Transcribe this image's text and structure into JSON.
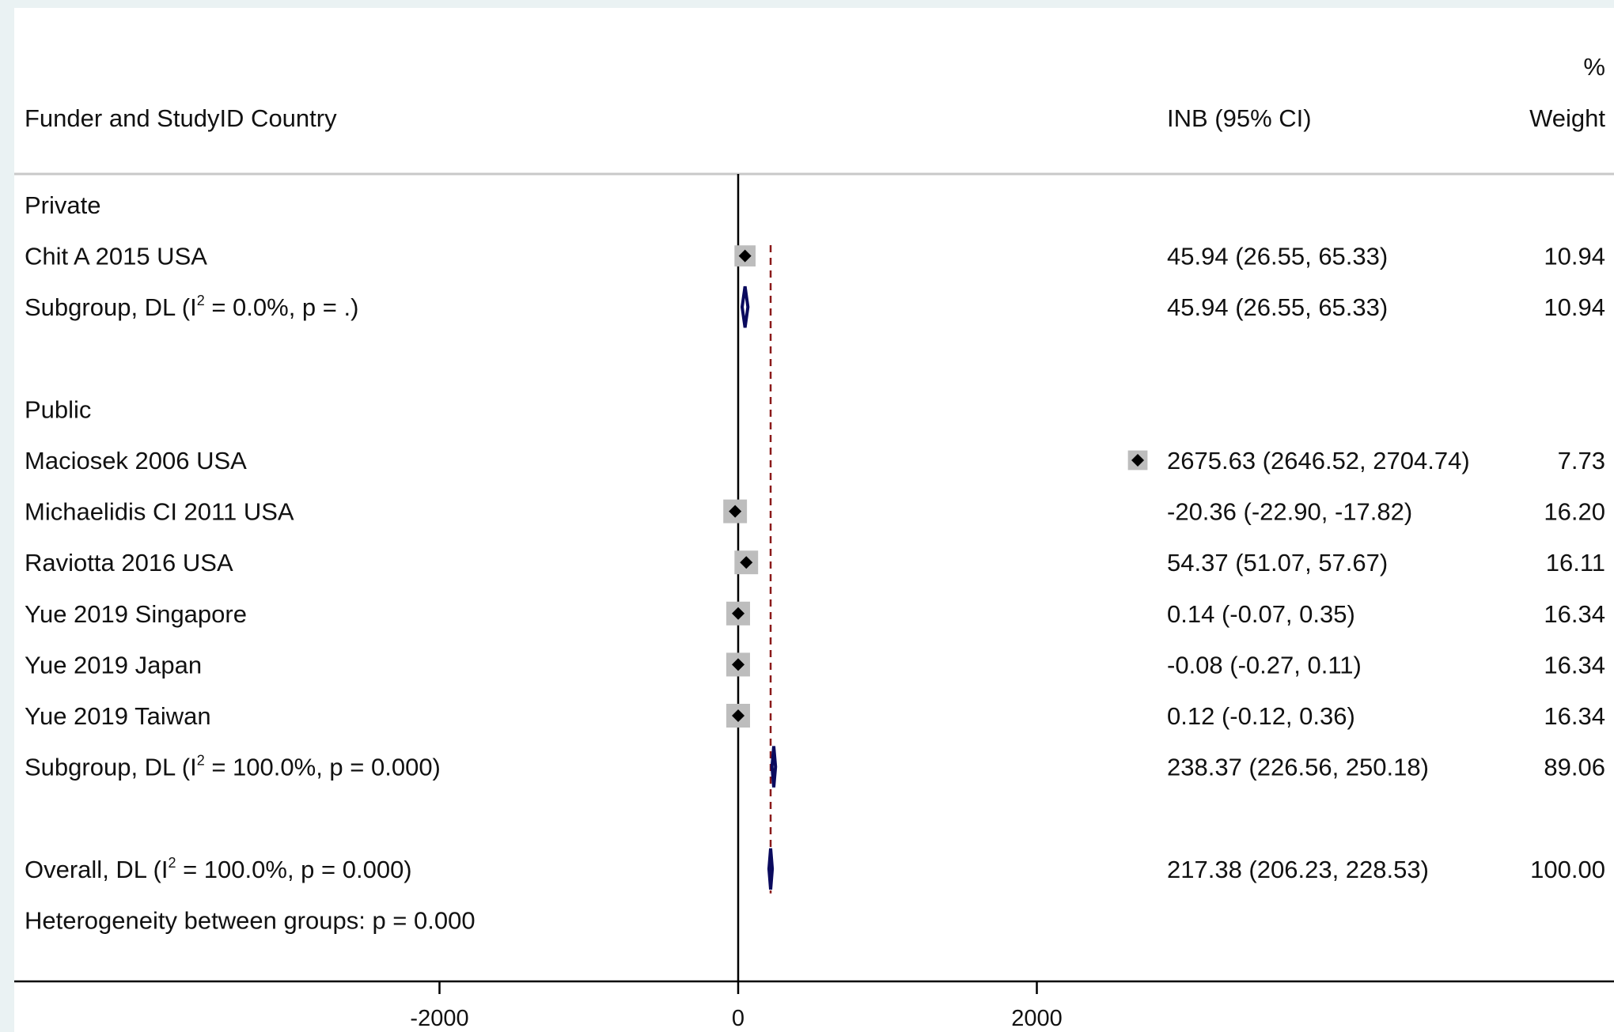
{
  "chart_data": {
    "type": "forest",
    "header": {
      "study_col": "Funder and StudyID Country",
      "effect_col": "INB (95% CI)",
      "weight_col_top": "%",
      "weight_col_bottom": "Weight"
    },
    "xticks": [
      -2000,
      0,
      2000
    ],
    "xtick_labels": [
      "-2000",
      "0",
      "2000"
    ],
    "xlim": [
      -4000,
      5800
    ],
    "null_line": 0,
    "overall_line": 217.38,
    "rows": [
      {
        "kind": "group",
        "label": "Private"
      },
      {
        "kind": "study",
        "label": "Chit A 2015   USA",
        "est": 45.94,
        "lo": 26.55,
        "hi": 65.33,
        "ci_text": "45.94 (26.55, 65.33)",
        "weight": 10.94,
        "weight_text": "10.94"
      },
      {
        "kind": "subgroup",
        "label_pre": "Subgroup, DL (I",
        "label_sup": "2",
        "label_post": " = 0.0%, p = .)",
        "est": 45.94,
        "lo": 26.55,
        "hi": 65.33,
        "ci_text": "45.94 (26.55, 65.33)",
        "weight_text": "10.94"
      },
      {
        "kind": "blank"
      },
      {
        "kind": "group",
        "label": "Public"
      },
      {
        "kind": "study",
        "label": "Maciosek 2006  USA",
        "est": 2675.63,
        "lo": 2646.52,
        "hi": 2704.74,
        "ci_text": "2675.63 (2646.52, 2704.74)",
        "weight": 7.73,
        "weight_text": "7.73"
      },
      {
        "kind": "study",
        "label": "Michaelidis CI 2011   USA",
        "est": -20.36,
        "lo": -22.9,
        "hi": -17.82,
        "ci_text": "-20.36 (-22.90, -17.82)",
        "weight": 16.2,
        "weight_text": "16.20"
      },
      {
        "kind": "study",
        "label": "Raviotta 2016    USA",
        "est": 54.37,
        "lo": 51.07,
        "hi": 57.67,
        "ci_text": "54.37 (51.07, 57.67)",
        "weight": 16.11,
        "weight_text": "16.11"
      },
      {
        "kind": "study",
        "label": "Yue 2019    Singapore",
        "est": 0.14,
        "lo": -0.07,
        "hi": 0.35,
        "ci_text": "0.14 (-0.07, 0.35)",
        "weight": 16.34,
        "weight_text": "16.34"
      },
      {
        "kind": "study",
        "label": "Yue 2019     Japan",
        "est": -0.08,
        "lo": -0.27,
        "hi": 0.11,
        "ci_text": "-0.08 (-0.27, 0.11)",
        "weight": 16.34,
        "weight_text": "16.34"
      },
      {
        "kind": "study",
        "label": "Yue 2019     Taiwan",
        "est": 0.12,
        "lo": -0.12,
        "hi": 0.36,
        "ci_text": "0.12 (-0.12, 0.36)",
        "weight": 16.34,
        "weight_text": "16.34"
      },
      {
        "kind": "subgroup",
        "label_pre": "Subgroup, DL (I",
        "label_sup": "2",
        "label_post": " = 100.0%, p = 0.000)",
        "est": 238.37,
        "lo": 226.56,
        "hi": 250.18,
        "ci_text": "238.37 (226.56, 250.18)",
        "weight_text": "89.06"
      },
      {
        "kind": "blank"
      },
      {
        "kind": "overall",
        "label_pre": "Overall, DL (I",
        "label_sup": "2",
        "label_post": " = 100.0%, p = 0.000)",
        "est": 217.38,
        "lo": 206.23,
        "hi": 228.53,
        "ci_text": "217.38 (206.23, 228.53)",
        "weight_text": "100.00"
      },
      {
        "kind": "note",
        "label": "Heterogeneity between groups: p = 0.000"
      }
    ],
    "colors": {
      "box": "#bdbdbd",
      "point": "#000000",
      "diamond": "#0a0a5e",
      "overall_line": "#8b1a1a",
      "axis": "#000000",
      "header_rule": "#c8c8c8"
    }
  }
}
